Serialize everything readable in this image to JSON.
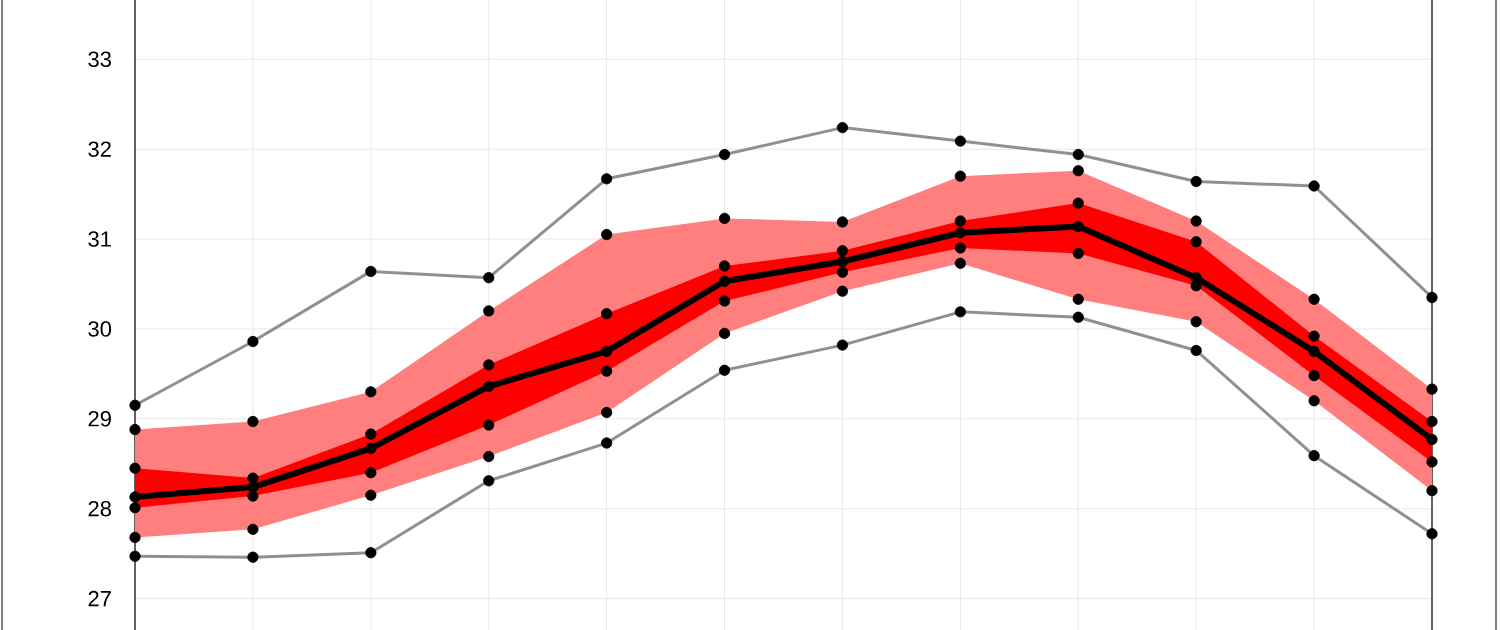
{
  "chart_data": {
    "type": "line",
    "categories": [
      null,
      null,
      null,
      null,
      null,
      null,
      null,
      null,
      null,
      null,
      null,
      null
    ],
    "ylim": [
      26.65,
      33.66
    ],
    "yticks": [
      27,
      28,
      29,
      30,
      31,
      32,
      33
    ],
    "grid": true,
    "tick_labels": "y",
    "marker": "circle",
    "line_style": "solid",
    "series": [
      {
        "color": "#ff7f7f",
        "values": [
          null,
          null,
          null,
          null,
          null,
          null,
          null,
          null,
          null,
          null,
          null,
          null
        ],
        "lower": [
          27.68,
          27.77,
          28.15,
          28.58,
          29.07,
          29.95,
          30.42,
          30.73,
          30.33,
          30.08,
          29.2,
          28.2
        ],
        "upper": [
          28.88,
          28.97,
          29.3,
          30.2,
          31.05,
          31.23,
          31.19,
          31.7,
          31.76,
          31.2,
          30.33,
          29.33
        ]
      },
      {
        "color": "#ff0000",
        "values": [
          null,
          null,
          null,
          null,
          null,
          null,
          null,
          null,
          null,
          null,
          null,
          null
        ],
        "lower": [
          28.01,
          28.14,
          28.4,
          28.93,
          29.53,
          30.31,
          30.63,
          30.9,
          30.84,
          30.48,
          29.48,
          28.52
        ],
        "upper": [
          28.45,
          28.34,
          28.83,
          29.6,
          30.17,
          30.7,
          30.87,
          31.2,
          31.4,
          30.97,
          29.92,
          28.97
        ]
      },
      {
        "type": "scatter",
        "color": "#000000",
        "values": [
          28.88,
          28.97,
          29.3,
          30.2,
          31.05,
          31.23,
          31.19,
          31.7,
          31.76,
          31.2,
          30.33,
          29.33
        ]
      },
      {
        "type": "scatter",
        "color": "#000000",
        "values": [
          27.68,
          27.77,
          28.15,
          28.58,
          29.07,
          29.95,
          30.42,
          30.73,
          30.33,
          30.08,
          29.2,
          28.2
        ]
      },
      {
        "type": "scatter",
        "color": "#000000",
        "values": [
          28.45,
          28.34,
          28.83,
          29.6,
          30.17,
          30.7,
          30.87,
          31.2,
          31.4,
          30.97,
          29.92,
          28.97
        ]
      },
      {
        "type": "scatter",
        "color": "#000000",
        "values": [
          28.01,
          28.14,
          28.4,
          28.93,
          29.53,
          30.31,
          30.63,
          30.9,
          30.84,
          30.48,
          29.48,
          28.52
        ]
      },
      {
        "type": "line",
        "color": "#909090",
        "values": [
          29.15,
          29.86,
          30.64,
          30.57,
          31.67,
          31.94,
          32.24,
          32.09,
          31.94,
          31.64,
          31.59,
          30.35
        ]
      },
      {
        "type": "line",
        "color": "#909090",
        "values": [
          27.47,
          27.46,
          27.51,
          28.31,
          28.73,
          29.54,
          29.82,
          30.19,
          30.13,
          29.76,
          28.59,
          27.72
        ]
      },
      {
        "color": "#000000",
        "values": [
          28.13,
          28.24,
          28.67,
          29.36,
          29.75,
          30.53,
          30.75,
          31.07,
          31.14,
          30.57,
          29.75,
          28.77
        ]
      }
    ]
  }
}
